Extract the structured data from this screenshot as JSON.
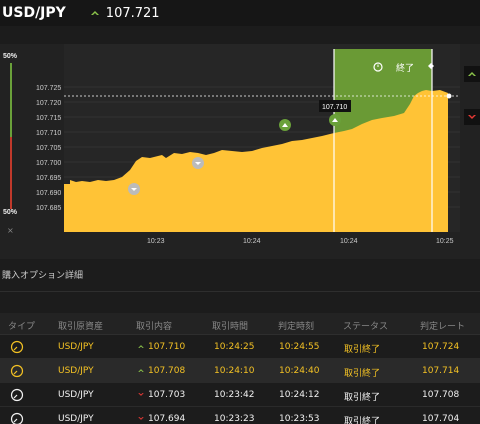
{
  "header": {
    "pair": "USD/JPY",
    "rate": "107.721"
  },
  "ratio": {
    "top": "50%",
    "bottom": "50%",
    "close": "×"
  },
  "chart": {
    "y_ticks": [
      "107.725",
      "107.720",
      "107.715",
      "107.710",
      "107.705",
      "107.700",
      "107.695",
      "107.690",
      "107.685"
    ],
    "x_ticks": [
      "10:23",
      "10:24",
      "10:24",
      "10:25"
    ],
    "entry_label": "107.710",
    "end_label": "終了"
  },
  "section": {
    "title": "購入オプション詳細"
  },
  "table": {
    "headers": [
      "タイプ",
      "取引原資産",
      "取引内容",
      "取引時間",
      "判定時刻",
      "ステータス",
      "判定レート"
    ],
    "rows": [
      {
        "asset": "USD/JPY",
        "direction": "up",
        "rate": "107.710",
        "time": "10:24:25",
        "judge": "10:24:55",
        "status": "取引終了",
        "judge_rate": "107.724",
        "active": true
      },
      {
        "asset": "USD/JPY",
        "direction": "up",
        "rate": "107.708",
        "time": "10:24:10",
        "judge": "10:24:40",
        "status": "取引終了",
        "judge_rate": "107.714",
        "active": true
      },
      {
        "asset": "USD/JPY",
        "direction": "down",
        "rate": "107.703",
        "time": "10:23:42",
        "judge": "10:24:12",
        "status": "取引終了",
        "judge_rate": "107.708",
        "active": false
      },
      {
        "asset": "USD/JPY",
        "direction": "down",
        "rate": "107.694",
        "time": "10:23:23",
        "judge": "10:23:53",
        "status": "取引終了",
        "judge_rate": "107.704",
        "active": false
      }
    ]
  },
  "colors": {
    "accent": "#f4c224",
    "up": "#8bc34a",
    "down": "#e53935",
    "zone": "#6a9a35"
  }
}
